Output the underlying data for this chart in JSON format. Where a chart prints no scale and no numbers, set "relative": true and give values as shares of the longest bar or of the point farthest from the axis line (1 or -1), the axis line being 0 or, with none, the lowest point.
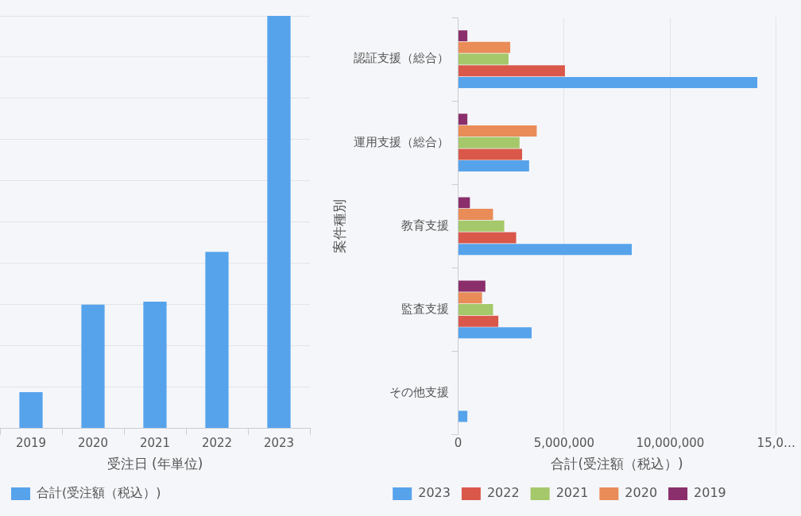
{
  "chart_data": [
    {
      "type": "bar",
      "relative": true,
      "categories": [
        "2019",
        "2020",
        "2021",
        "2022",
        "2023"
      ],
      "xlabel": "受注日 (年単位)",
      "series": [
        {
          "name": "合計(受注額（税込）)",
          "color": "#56a3ec",
          "values": [
            0.088,
            0.3,
            0.307,
            0.428,
            1
          ]
        }
      ],
      "grid": "y",
      "legend": "bottom left"
    },
    {
      "type": "bar",
      "orientation": "horizontal",
      "categories": [
        "認証支援（総合）",
        "運用支援（総合）",
        "教育支援",
        "監査支援",
        "その他支援"
      ],
      "xlabel": "合計(受注額（税込）)",
      "ylabel": "案件種別",
      "xlim": [
        0,
        15000000
      ],
      "xticks": [
        0,
        {
          "value": 5000000,
          "label": "5,000,000"
        },
        {
          "value": 10000000,
          "label": "10,000,000"
        },
        {
          "value": 15000000,
          "label": "15,0…"
        }
      ],
      "series": [
        {
          "name": "2023",
          "color": "#56a3ec",
          "values": [
            14110000,
            3350000,
            8190000,
            3470000,
            440000
          ]
        },
        {
          "name": "2022",
          "color": "#d9584a",
          "values": [
            5040000,
            3020000,
            2740000,
            1900000,
            null
          ]
        },
        {
          "name": "2021",
          "color": "#a5c86a",
          "values": [
            2380000,
            2900000,
            2180000,
            1650000,
            null
          ]
        },
        {
          "name": "2020",
          "color": "#e98c58",
          "values": [
            2460000,
            3710000,
            1650000,
            1130000,
            null
          ]
        },
        {
          "name": "2019",
          "color": "#8a2f6b",
          "values": [
            440000,
            440000,
            560000,
            1290000,
            null
          ]
        }
      ],
      "grid": "x",
      "legend": "bottom"
    }
  ]
}
